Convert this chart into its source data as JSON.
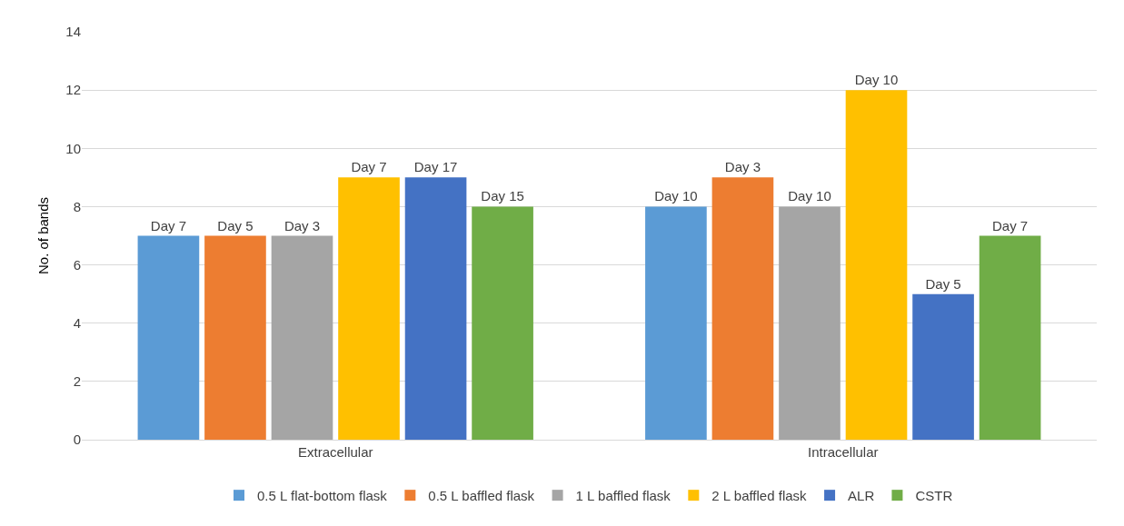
{
  "chart_data": {
    "type": "bar",
    "ylabel": "No. of bands",
    "categories": [
      "Extracellular",
      "Intracellular"
    ],
    "series": [
      {
        "name": "0.5 L flat-bottom flask",
        "color": "#5b9bd5",
        "values": [
          7,
          8
        ],
        "value_labels": [
          "Day 7",
          "Day 10"
        ]
      },
      {
        "name": "0.5 L baffled flask",
        "color": "#ed7d31",
        "values": [
          7,
          9
        ],
        "value_labels": [
          "Day 5",
          "Day 3"
        ]
      },
      {
        "name": "1 L baffled flask",
        "color": "#a5a5a5",
        "values": [
          7,
          8
        ],
        "value_labels": [
          "Day 3",
          "Day 10"
        ]
      },
      {
        "name": "2 L baffled flask",
        "color": "#ffc000",
        "values": [
          9,
          12
        ],
        "value_labels": [
          "Day 7",
          "Day 10"
        ]
      },
      {
        "name": "ALR",
        "color": "#4472c4",
        "values": [
          9,
          5
        ],
        "value_labels": [
          "Day 17",
          "Day 5"
        ]
      },
      {
        "name": "CSTR",
        "color": "#70ad47",
        "values": [
          8,
          7
        ],
        "value_labels": [
          "Day 15",
          "Day 7"
        ]
      }
    ],
    "ylim": [
      0,
      14
    ],
    "yticks": [
      0,
      2,
      4,
      6,
      8,
      10,
      12,
      14
    ],
    "grid": "y",
    "legend": "bottom"
  }
}
